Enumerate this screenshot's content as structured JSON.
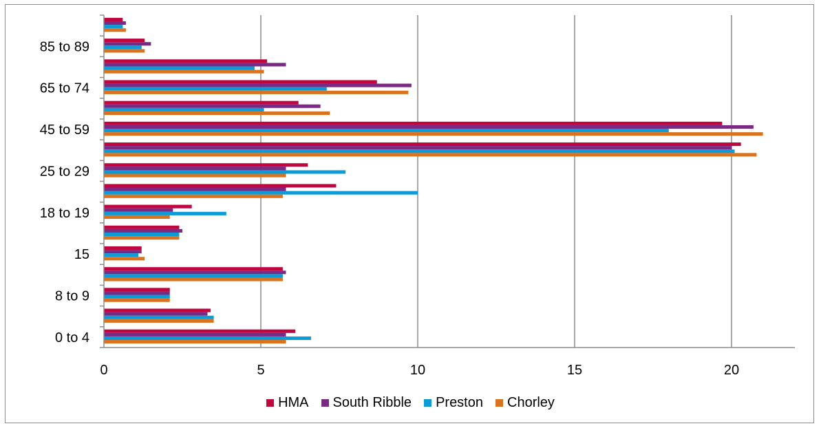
{
  "chart_data": {
    "type": "bar",
    "orientation": "horizontal",
    "categories": [
      "0 to 4",
      "",
      "8 to 9",
      "",
      "15",
      "",
      "18 to 19",
      "",
      "25 to 29",
      "",
      "45 to 59",
      "",
      "65 to 74",
      "",
      "85 to 89",
      ""
    ],
    "series": [
      {
        "name": "HMA",
        "color": "#c0063f",
        "values": [
          6.1,
          3.4,
          2.1,
          5.7,
          1.2,
          2.4,
          2.8,
          7.4,
          6.5,
          20.3,
          19.7,
          6.2,
          8.7,
          5.2,
          1.3,
          0.6
        ]
      },
      {
        "name": "South Ribble",
        "color": "#7b2a84",
        "values": [
          5.8,
          3.3,
          2.1,
          5.8,
          1.2,
          2.5,
          2.2,
          5.8,
          5.8,
          20.0,
          20.7,
          6.9,
          9.8,
          5.8,
          1.5,
          0.7
        ]
      },
      {
        "name": "Preston",
        "color": "#0c9bd6",
        "values": [
          6.6,
          3.5,
          2.1,
          5.7,
          1.1,
          2.4,
          3.9,
          10.0,
          7.7,
          20.1,
          18.0,
          5.1,
          7.1,
          4.8,
          1.2,
          0.6
        ]
      },
      {
        "name": "Chorley",
        "color": "#d9731f",
        "values": [
          5.8,
          3.5,
          2.1,
          5.7,
          1.3,
          2.4,
          2.1,
          5.7,
          5.8,
          20.8,
          21.0,
          7.2,
          9.7,
          5.1,
          1.3,
          0.7
        ]
      }
    ],
    "x_ticks": [
      "0",
      "5",
      "10",
      "15",
      "20"
    ],
    "xlim": [
      0,
      22
    ],
    "grid": "vertical",
    "legend_position": "bottom"
  }
}
